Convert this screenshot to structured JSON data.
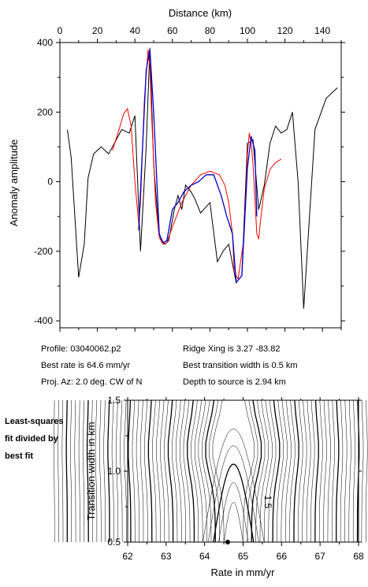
{
  "chart_data": [
    {
      "type": "line",
      "title": "",
      "xlabel": "Distance (km)",
      "ylabel": "Anomaly amplitude",
      "xlim": [
        0,
        150
      ],
      "ylim": [
        -420,
        400
      ],
      "x_ticks": [
        "0",
        "20",
        "40",
        "60",
        "80",
        "100",
        "120",
        "140"
      ],
      "y_ticks": [
        "400",
        "200",
        "0",
        "-200",
        "-400"
      ],
      "grid": false,
      "series": [
        {
          "color": "#000000",
          "x": [
            4,
            6,
            10,
            13,
            15,
            18,
            22,
            26,
            30,
            33,
            37,
            40,
            43,
            46,
            48,
            50,
            53,
            56,
            58,
            61,
            63,
            65,
            67,
            70,
            72,
            75,
            80,
            84,
            87,
            90,
            94,
            97,
            100,
            103,
            106,
            109,
            112,
            115,
            118,
            121,
            124,
            127,
            130,
            136,
            142,
            148
          ],
          "values": [
            150,
            70,
            -275,
            -180,
            10,
            80,
            100,
            80,
            120,
            150,
            140,
            190,
            -200,
            100,
            385,
            50,
            -160,
            -180,
            -170,
            -80,
            -40,
            -80,
            -10,
            -30,
            -50,
            -90,
            -60,
            -230,
            -200,
            -180,
            -290,
            -270,
            110,
            120,
            -80,
            -10,
            110,
            160,
            140,
            150,
            200,
            0,
            -365,
            150,
            240,
            270
          ]
        },
        {
          "color": "#ff0000",
          "x": [
            28,
            31,
            34,
            36,
            38,
            40,
            42,
            43,
            45,
            47,
            48,
            49,
            51,
            53,
            55,
            57,
            60,
            65,
            70,
            75,
            80,
            85,
            88,
            90,
            92,
            93,
            95,
            98,
            100,
            101,
            102,
            103,
            104,
            105,
            106,
            107,
            109,
            112,
            115,
            118
          ],
          "values": [
            90,
            140,
            195,
            210,
            160,
            0,
            -120,
            -60,
            230,
            380,
            330,
            180,
            -60,
            -160,
            -180,
            -175,
            -130,
            -60,
            -10,
            20,
            30,
            20,
            -10,
            -60,
            -150,
            -260,
            -280,
            -170,
            80,
            140,
            110,
            50,
            -50,
            -150,
            -165,
            -110,
            -20,
            35,
            55,
            65
          ]
        },
        {
          "color": "#0000cc",
          "x": [
            42,
            44,
            46,
            48,
            50,
            53,
            55,
            57,
            60,
            63,
            66,
            70,
            74,
            78,
            82,
            86,
            89,
            92,
            94,
            97,
            100,
            102,
            104,
            105
          ],
          "values": [
            -140,
            90,
            320,
            380,
            200,
            -150,
            -175,
            -170,
            -80,
            -60,
            -30,
            -10,
            0,
            20,
            20,
            -40,
            -100,
            -150,
            -290,
            -270,
            40,
            130,
            90,
            -100
          ]
        }
      ]
    },
    {
      "type": "contour",
      "title": "",
      "xlabel": "Rate in mm/yr",
      "ylabel": "Transition width in km",
      "xlim": [
        62,
        68
      ],
      "ylim": [
        0.5,
        1.5
      ],
      "x_ticks": [
        "62",
        "63",
        "64",
        "65",
        "66",
        "67",
        "68"
      ],
      "y_ticks": [
        "1.5",
        "1.0",
        "0.5"
      ],
      "contour_label": "1.5",
      "best_fit_point": {
        "x": 64.6,
        "y": 0.5
      }
    }
  ],
  "info": {
    "profile": "Profile: 03040062.p2",
    "best_rate": "Best rate is 64.6 mm/yr",
    "proj_az": "Proj. Az: 2.0 deg. CW of N",
    "ridge_xing": "Ridge Xing is 3.27 -83.82",
    "best_width": "Best transition width is 0.5 km",
    "depth": "Depth to source is   2.94 km"
  },
  "note": [
    "Least-squares",
    "fit divided by",
    "best fit"
  ]
}
